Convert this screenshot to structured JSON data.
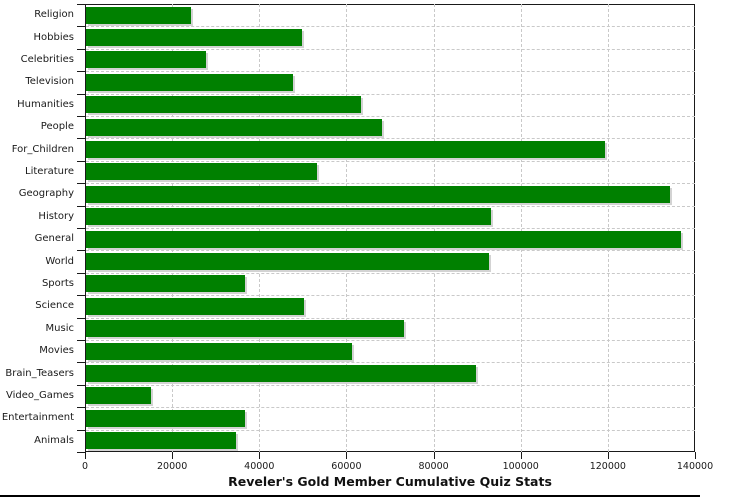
{
  "chart_data": {
    "type": "bar",
    "orientation": "horizontal",
    "title": "Reveler's Gold Member Cumulative Quiz Stats",
    "categories": [
      "Religion",
      "Hobbies",
      "Celebrities",
      "Television",
      "Humanities",
      "People",
      "For_Children",
      "Literature",
      "Geography",
      "History",
      "General",
      "World",
      "Sports",
      "Science",
      "Music",
      "Movies",
      "Brain_Teasers",
      "Video_Games",
      "Entertainment",
      "Animals"
    ],
    "values": [
      24000,
      49500,
      27500,
      47500,
      63000,
      68000,
      119000,
      53000,
      134000,
      93000,
      136500,
      92500,
      36500,
      50000,
      73000,
      61000,
      89500,
      15000,
      36500,
      34500
    ],
    "xlabel": "",
    "ylabel": "",
    "xlim": [
      0,
      140000
    ],
    "x_ticks": [
      0,
      20000,
      40000,
      60000,
      80000,
      100000,
      120000,
      140000
    ],
    "grid": "dashed-both-directions",
    "legend": "none",
    "colors": {
      "bar": "#008000",
      "bar_shadow": "#d3d3d3",
      "grid": "#c9c9c9",
      "axis": "#1a1a1a",
      "text": "#1a1a1a",
      "background": "#ffffff"
    }
  }
}
